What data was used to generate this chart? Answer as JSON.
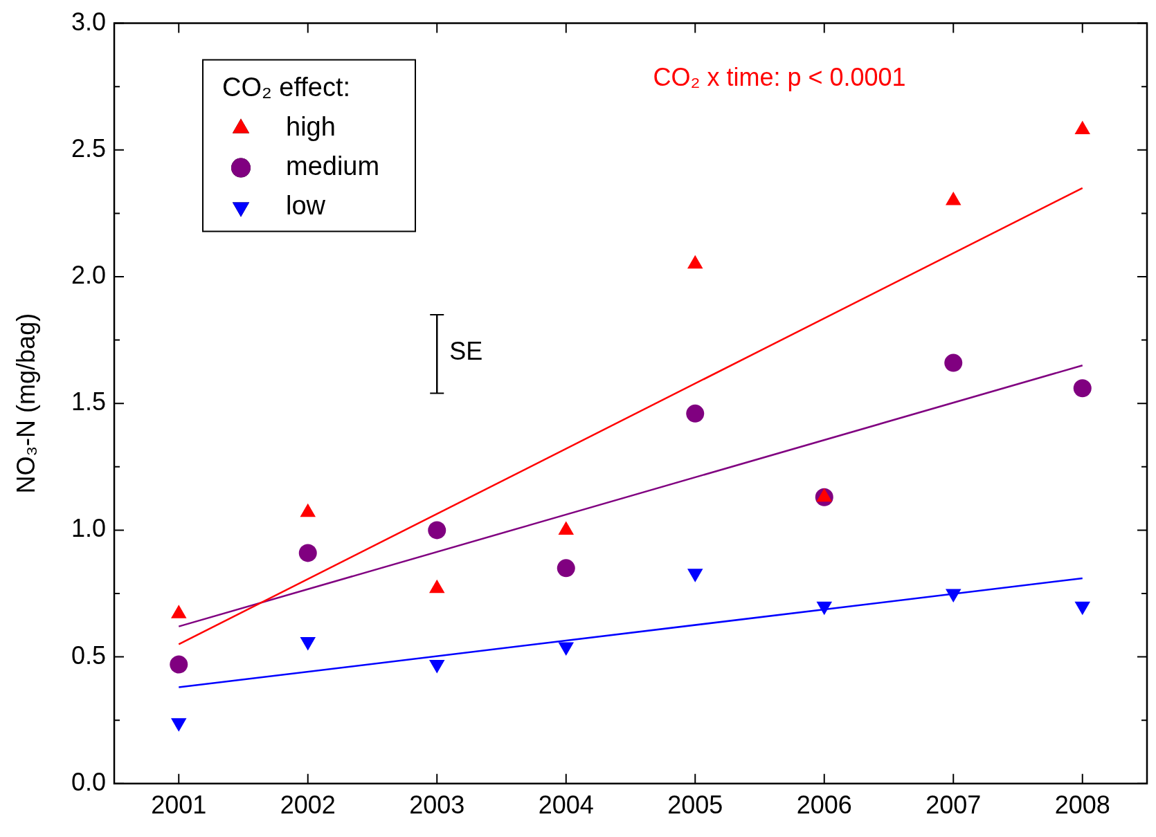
{
  "chart_data": {
    "type": "scatter",
    "ylabel": "NO₃-N (mg/bag)",
    "legend_title": "CO₂ effect:",
    "legend": "top left",
    "x": [
      2001,
      2002,
      2003,
      2004,
      2005,
      2006,
      2007,
      2008
    ],
    "xlim": [
      2000.5,
      2008.5
    ],
    "xticks": [
      2001,
      2002,
      2003,
      2004,
      2005,
      2006,
      2007,
      2008
    ],
    "ylim": [
      0,
      3
    ],
    "yticks": [
      {
        "value": 0,
        "label": "0.0"
      },
      {
        "value": 0.25,
        "label": null
      },
      0.5,
      {
        "value": 0.75,
        "label": null
      },
      {
        "value": 1,
        "label": "1.0"
      },
      {
        "value": 1.25,
        "label": null
      },
      1.5,
      {
        "value": 1.75,
        "label": null
      },
      {
        "value": 2,
        "label": "2.0"
      },
      {
        "value": 2.25,
        "label": null
      },
      2.5,
      {
        "value": 2.75,
        "label": null
      },
      {
        "value": 3,
        "label": "3.0"
      }
    ],
    "grid": false,
    "series": [
      {
        "name": "high",
        "color": "#ff0000",
        "marker": "triangle",
        "values": [
          0.67,
          1.07,
          0.77,
          1.0,
          2.05,
          1.13,
          2.3,
          2.58
        ]
      },
      {
        "name": "medium",
        "color": "#800080",
        "marker": "circle",
        "values": [
          0.47,
          0.91,
          1.0,
          0.85,
          1.46,
          1.13,
          1.66,
          1.56
        ]
      },
      {
        "name": "low",
        "color": "#0000ff",
        "marker": "triangle-down",
        "values": [
          0.24,
          0.56,
          0.47,
          0.54,
          0.83,
          0.7,
          0.75,
          0.7
        ]
      },
      {
        "type": "line",
        "color": "#ff0000",
        "x": [
          2001,
          2008
        ],
        "values": [
          0.55,
          2.35
        ],
        "marker": "none"
      },
      {
        "type": "line",
        "color": "#800080",
        "x": [
          2001,
          2008
        ],
        "values": [
          0.62,
          1.65
        ],
        "marker": "none"
      },
      {
        "type": "line",
        "color": "#0000ff",
        "x": [
          2001,
          2008
        ],
        "values": [
          0.38,
          0.81
        ],
        "marker": "none"
      },
      {
        "type": "line",
        "color": "#000000",
        "x": [
          2003,
          2003
        ],
        "values": [
          1.54,
          1.85
        ],
        "marker": "none"
      }
    ],
    "annotations": [
      {
        "text": "SE",
        "x": 2003,
        "y": 1.7
      },
      "CO₂ x time: p < 0.0001"
    ]
  }
}
